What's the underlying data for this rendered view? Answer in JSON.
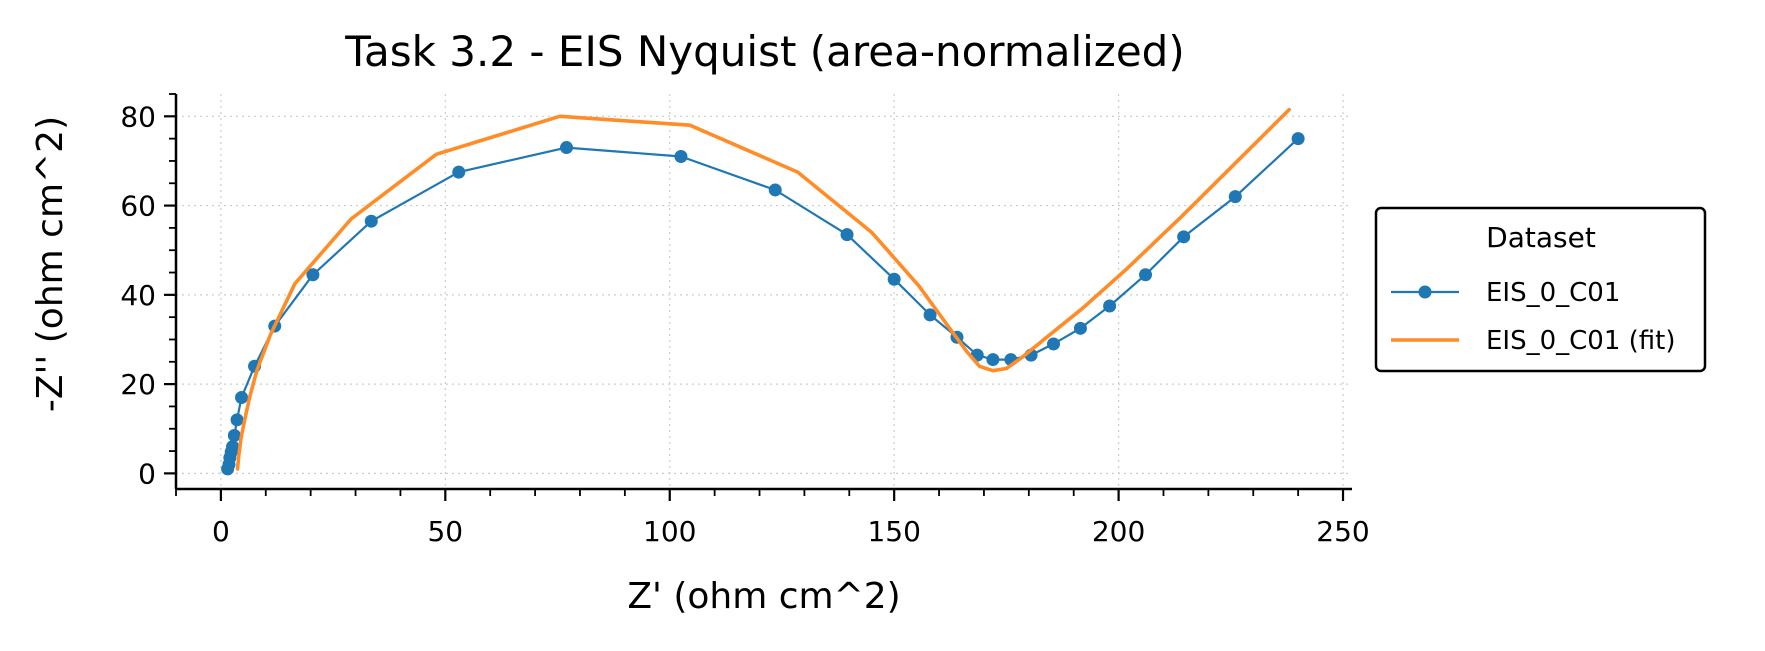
{
  "chart_data": {
    "type": "line",
    "title": "Task 3.2 - EIS Nyquist (area-normalized)",
    "xlabel": "Z' (ohm cm^2)",
    "ylabel": "-Z'' (ohm cm^2)",
    "xlim": [
      -10,
      252
    ],
    "ylim": [
      -3.5,
      85
    ],
    "xticks": [
      0,
      50,
      100,
      150,
      200,
      250
    ],
    "yticks": [
      0,
      20,
      40,
      60,
      80
    ],
    "grid": true,
    "legend": {
      "title": "Dataset",
      "placement": "right, outside"
    },
    "series": [
      {
        "name": "EIS_0_C01",
        "color": "#1f77b4",
        "style": "line-with-markers",
        "points": [
          [
            1.5,
            1.0
          ],
          [
            1.8,
            2.0
          ],
          [
            2.0,
            3.5
          ],
          [
            2.3,
            4.8
          ],
          [
            2.6,
            6.0
          ],
          [
            3.0,
            8.5
          ],
          [
            3.6,
            12.0
          ],
          [
            4.6,
            17.0
          ],
          [
            7.5,
            24.0
          ],
          [
            12.0,
            33.0
          ],
          [
            20.5,
            44.5
          ],
          [
            33.5,
            56.5
          ],
          [
            53.0,
            67.5
          ],
          [
            77.0,
            73.0
          ],
          [
            102.5,
            71.0
          ],
          [
            123.5,
            63.5
          ],
          [
            139.5,
            53.5
          ],
          [
            150.0,
            43.5
          ],
          [
            158.0,
            35.5
          ],
          [
            164.0,
            30.5
          ],
          [
            168.5,
            26.5
          ],
          [
            172.0,
            25.5
          ],
          [
            176.0,
            25.5
          ],
          [
            180.5,
            26.5
          ],
          [
            185.5,
            29.0
          ],
          [
            191.5,
            32.5
          ],
          [
            198.0,
            37.5
          ],
          [
            206.0,
            44.5
          ],
          [
            214.5,
            53.0
          ],
          [
            226.0,
            62.0
          ],
          [
            240.0,
            75.0
          ]
        ]
      },
      {
        "name": "EIS_0_C01 (fit)",
        "color": "#ff8c26",
        "style": "line",
        "points": [
          [
            3.7,
            1.0
          ],
          [
            4.0,
            4.0
          ],
          [
            4.5,
            8.0
          ],
          [
            5.3,
            12.0
          ],
          [
            6.4,
            17.0
          ],
          [
            8.0,
            23.0
          ],
          [
            11.0,
            31.0
          ],
          [
            16.5,
            42.5
          ],
          [
            29.0,
            57.0
          ],
          [
            48.0,
            71.5
          ],
          [
            75.5,
            80.0
          ],
          [
            104.5,
            78.0
          ],
          [
            128.5,
            67.5
          ],
          [
            145.0,
            54.0
          ],
          [
            155.5,
            42.0
          ],
          [
            162.0,
            33.0
          ],
          [
            166.0,
            27.5
          ],
          [
            169.0,
            24.0
          ],
          [
            172.0,
            23.0
          ],
          [
            175.0,
            23.5
          ],
          [
            178.5,
            26.0
          ],
          [
            184.0,
            30.5
          ],
          [
            192.0,
            37.0
          ],
          [
            202.0,
            46.0
          ],
          [
            214.0,
            57.5
          ],
          [
            226.0,
            69.5
          ],
          [
            238.0,
            81.5
          ]
        ]
      }
    ]
  }
}
